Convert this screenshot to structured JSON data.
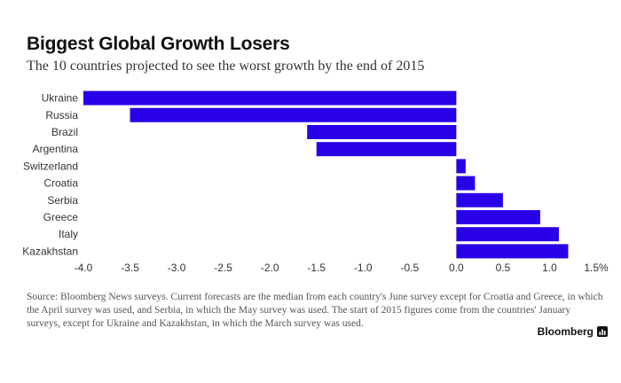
{
  "chart_data": {
    "type": "bar",
    "orientation": "horizontal",
    "title": "Biggest Global Growth Losers",
    "subtitle": "The 10 countries projected to see the worst growth by the end of 2015",
    "categories": [
      "Ukraine",
      "Russia",
      "Brazil",
      "Argentina",
      "Switzerland",
      "Croatia",
      "Serbia",
      "Greece",
      "Italy",
      "Kazakhstan"
    ],
    "values": [
      -4.0,
      -3.5,
      -1.6,
      -1.5,
      0.1,
      0.2,
      0.5,
      0.9,
      1.1,
      1.2
    ],
    "xlim": [
      -4.0,
      1.5
    ],
    "xticks": [
      -4.0,
      -3.5,
      -3.0,
      -2.5,
      -2.0,
      -1.5,
      -1.0,
      -0.5,
      0.0,
      0.5,
      1.0,
      1.5
    ],
    "xtick_labels": [
      "-4.0",
      "-3.5",
      "-3.0",
      "-2.5",
      "-2.0",
      "-1.5",
      "-1.0",
      "-0.5",
      "0.0",
      "0.5",
      "1.0",
      "1.5%"
    ],
    "xlabel": "",
    "ylabel": "",
    "bar_color": "#2a00e8",
    "grid": false
  },
  "source_note": "Source: Bloomberg News surveys. Current forecasts are the median from each country's June survey except for Croatia and Greece, in which the April survey was used, and Serbia, in which the May survey was used. The start of 2015 figures come from the countries' January surveys, except for Ukraine and Kazakhstan, in which the March survey was used.",
  "brand": {
    "name": "Bloomberg",
    "icon": "bar-chart-icon"
  }
}
